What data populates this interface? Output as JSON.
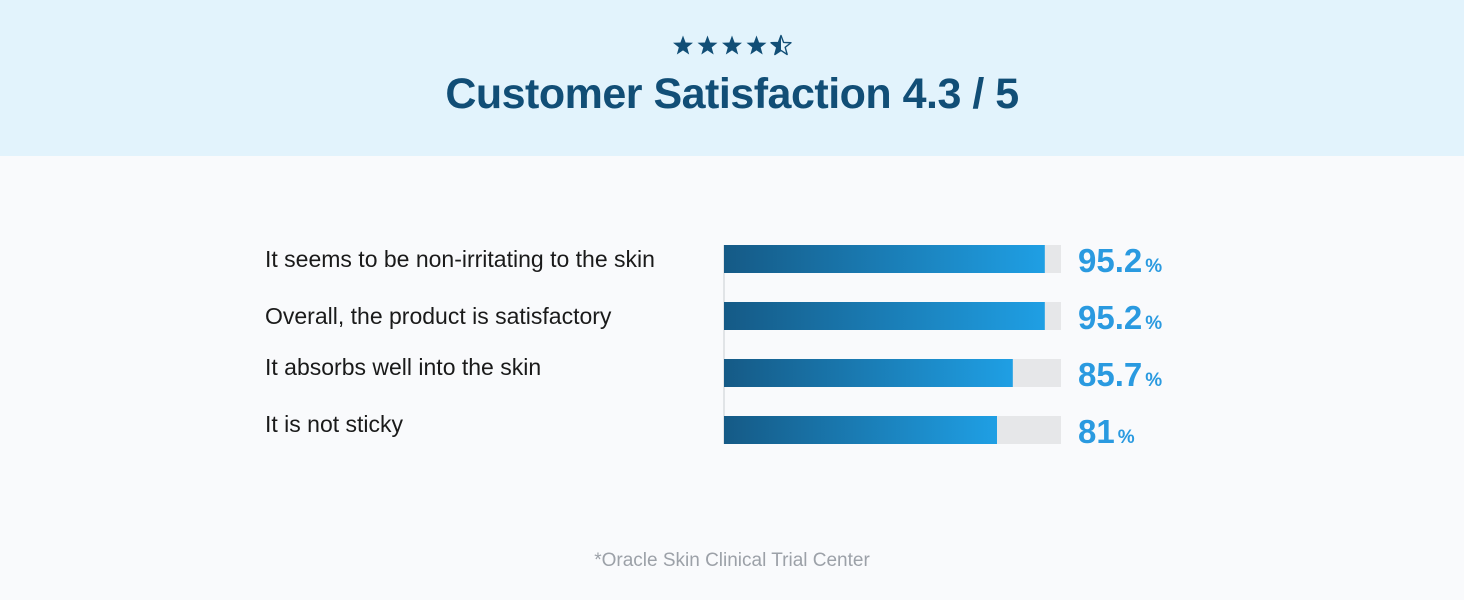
{
  "header": {
    "title": "Customer Satisfaction 4.3 / 5",
    "rating": 4.3,
    "rating_max": 5
  },
  "footnote": "*Oracle Skin Clinical Trial Center",
  "colors": {
    "header_bg": "#e2f3fc",
    "title": "#114e76",
    "bar_start": "#155a86",
    "bar_end": "#1f9fe4",
    "bar_track": "#e6e7e9",
    "value_text": "#2a9ae0",
    "label_text": "#1a1a1a"
  },
  "chart_data": {
    "type": "bar",
    "orientation": "horizontal",
    "categories": [
      "It seems to be non-irritating to the skin",
      "Overall, the product is satisfactory",
      "It absorbs well into the skin",
      "It is not sticky"
    ],
    "values": [
      95.2,
      95.2,
      85.7,
      81
    ],
    "value_labels": [
      "95.2",
      "95.2",
      "85.7",
      "81"
    ],
    "unit": "%",
    "xlim": [
      0,
      100
    ],
    "grid": false
  }
}
